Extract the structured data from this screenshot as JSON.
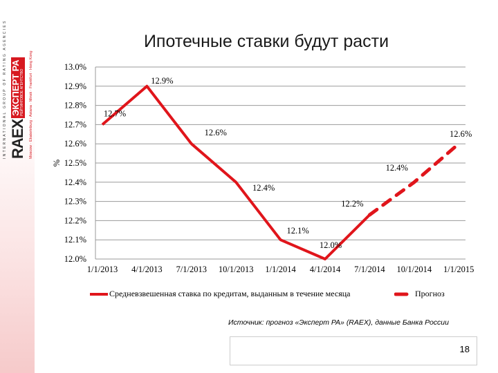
{
  "logo": {
    "top_text": "INTERNATIONAL GROUP OF RATING AGENCIES",
    "brand": "RAEX",
    "brand_box": "ЭКСПЕРТ РА",
    "brand_sub": "РЕЙТИНГОВОЕ АГЕНТСТВО",
    "cities": "Moscow · Ekaterinburg · Astana · Minsk · Frankfurt · Hong Kong"
  },
  "slide": {
    "title": "Ипотечные ставки будут расти",
    "source": "Источник: прогноз «Эксперт РА» (RAEX), данные Банка России",
    "page_number": "18"
  },
  "chart_data": {
    "type": "line",
    "title": "",
    "xlabel": "",
    "ylabel": "%",
    "ylim": [
      12.0,
      13.0
    ],
    "y_ticks": [
      "12.0%",
      "12.1%",
      "12.2%",
      "12.3%",
      "12.4%",
      "12.5%",
      "12.6%",
      "12.7%",
      "12.8%",
      "12.9%",
      "13.0%"
    ],
    "categories": [
      "1/1/2013",
      "4/1/2013",
      "7/1/2013",
      "10/1/2013",
      "1/1/2014",
      "4/1/2014",
      "7/1/2014",
      "10/1/2014",
      "1/1/2015"
    ],
    "grid": true,
    "legend_position": "bottom",
    "series": [
      {
        "name": "Средневзвешенная ставка по кредитам, выданным в течение месяца",
        "style": "solid",
        "color": "#e0151b",
        "values": [
          12.7,
          12.9,
          12.6,
          12.4,
          12.1,
          12.0,
          12.23,
          null,
          null
        ],
        "labels": [
          "12.7%",
          "12.9%",
          "12.6%",
          "12.4%",
          "12.1%",
          "12.0%",
          "12.2%",
          null,
          null
        ]
      },
      {
        "name": "Прогноз",
        "style": "dashed",
        "color": "#e0151b",
        "values": [
          null,
          null,
          null,
          null,
          null,
          null,
          12.23,
          12.4,
          12.6
        ],
        "labels": [
          null,
          null,
          null,
          null,
          null,
          null,
          null,
          "12.4%",
          "12.6%"
        ]
      }
    ]
  }
}
